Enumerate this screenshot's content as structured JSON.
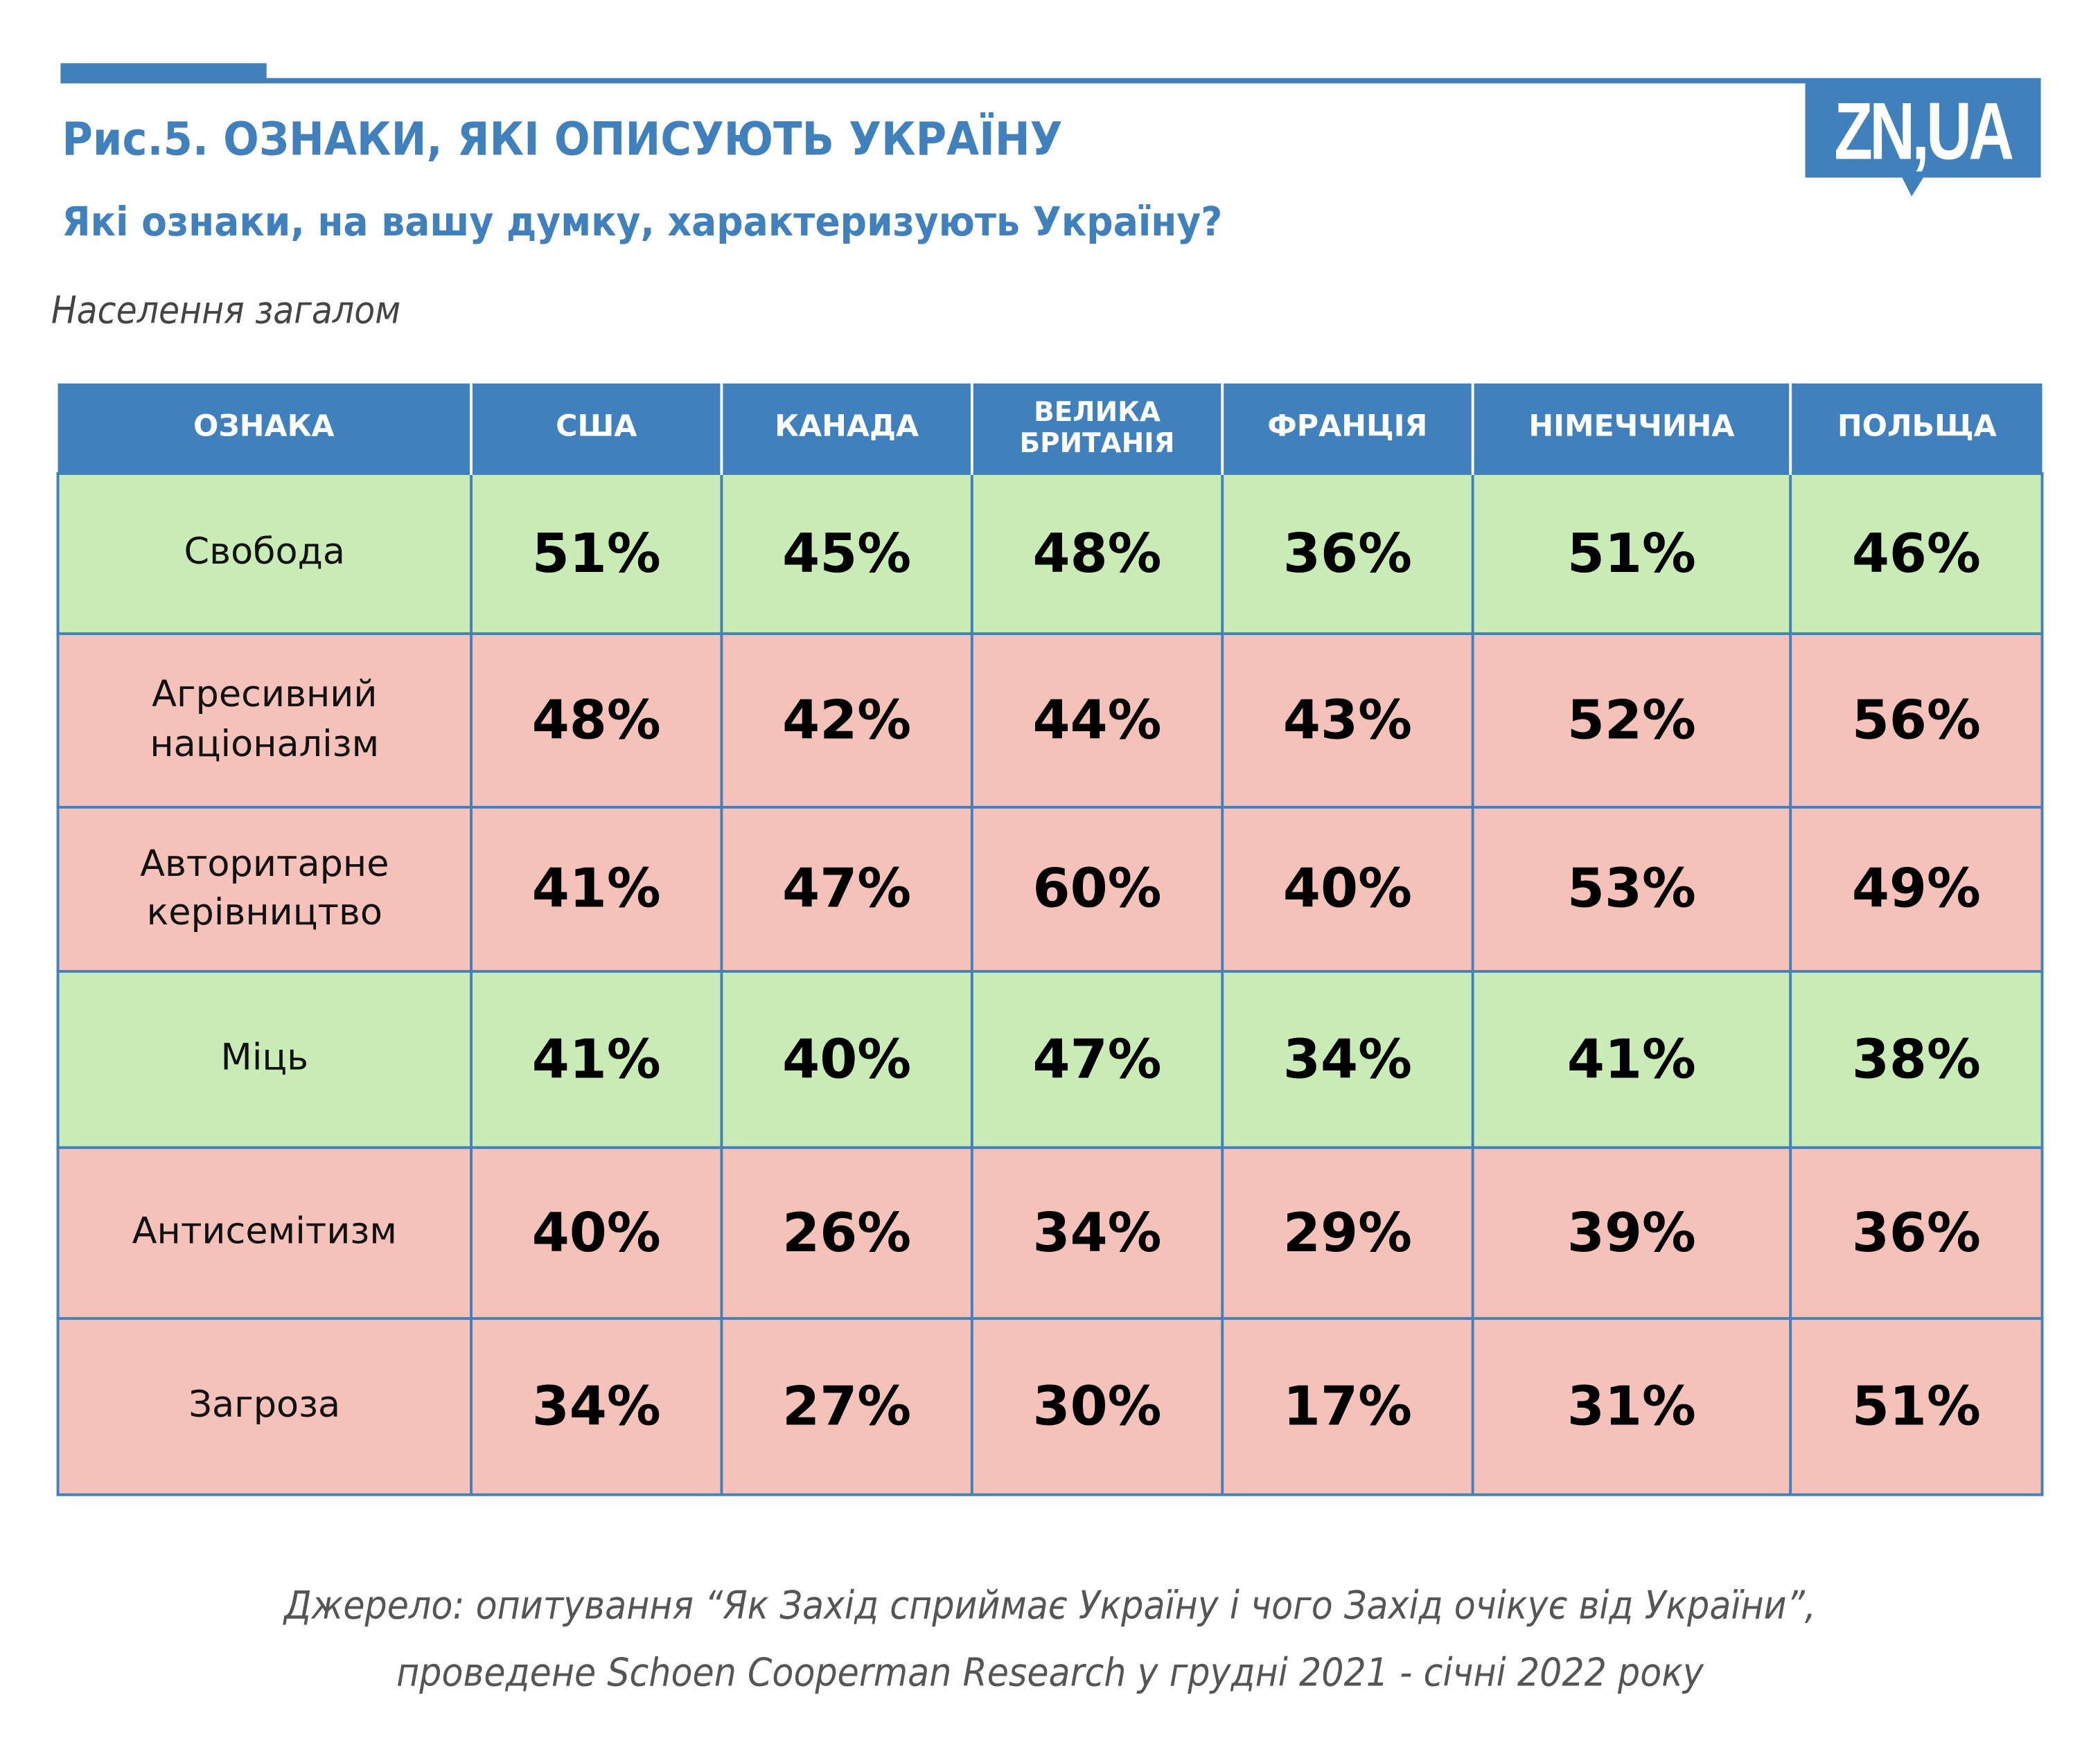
{
  "header": {
    "title": "Рис.5. ОЗНАКИ, ЯКІ ОПИСУЮТЬ УКРАЇНУ",
    "subtitle": "Які ознаки, на вашу думку, характеризують Україну?",
    "population": "Населення загалом",
    "logo": "ZN,UA"
  },
  "colors": {
    "accent": "#3f80bd",
    "positive": "#c9ecb6",
    "negative": "#f4c2b9"
  },
  "table": {
    "columns": [
      "ОЗНАКА",
      "США",
      "КАНАДА",
      "ВЕЛИКА БРИТАНІЯ",
      "ФРАНЦІЯ",
      "НІМЕЧЧИНА",
      "ПОЛЬЩА"
    ],
    "rows": [
      {
        "label": "Свобода",
        "tone": "green",
        "values": [
          "51%",
          "45%",
          "48%",
          "36%",
          "51%",
          "46%"
        ]
      },
      {
        "label": "Агресивний націоналізм",
        "tone": "pink",
        "values": [
          "48%",
          "42%",
          "44%",
          "43%",
          "52%",
          "56%"
        ]
      },
      {
        "label": "Авторитарне керівництво",
        "tone": "pink",
        "values": [
          "41%",
          "47%",
          "60%",
          "40%",
          "53%",
          "49%"
        ]
      },
      {
        "label": "Міць",
        "tone": "green",
        "values": [
          "41%",
          "40%",
          "47%",
          "34%",
          "41%",
          "38%"
        ]
      },
      {
        "label": "Антисемітизм",
        "tone": "pink",
        "values": [
          "40%",
          "26%",
          "34%",
          "29%",
          "39%",
          "36%"
        ]
      },
      {
        "label": "Загроза",
        "tone": "pink",
        "values": [
          "34%",
          "27%",
          "30%",
          "17%",
          "31%",
          "51%"
        ]
      }
    ]
  },
  "footer": {
    "line1": "Джерело: опитування “Як Захід сприймає Україну і чого Захід очікує від України”,",
    "line2": "проведене Schoen Cooperman Research у грудні 2021 - січні 2022 року"
  }
}
